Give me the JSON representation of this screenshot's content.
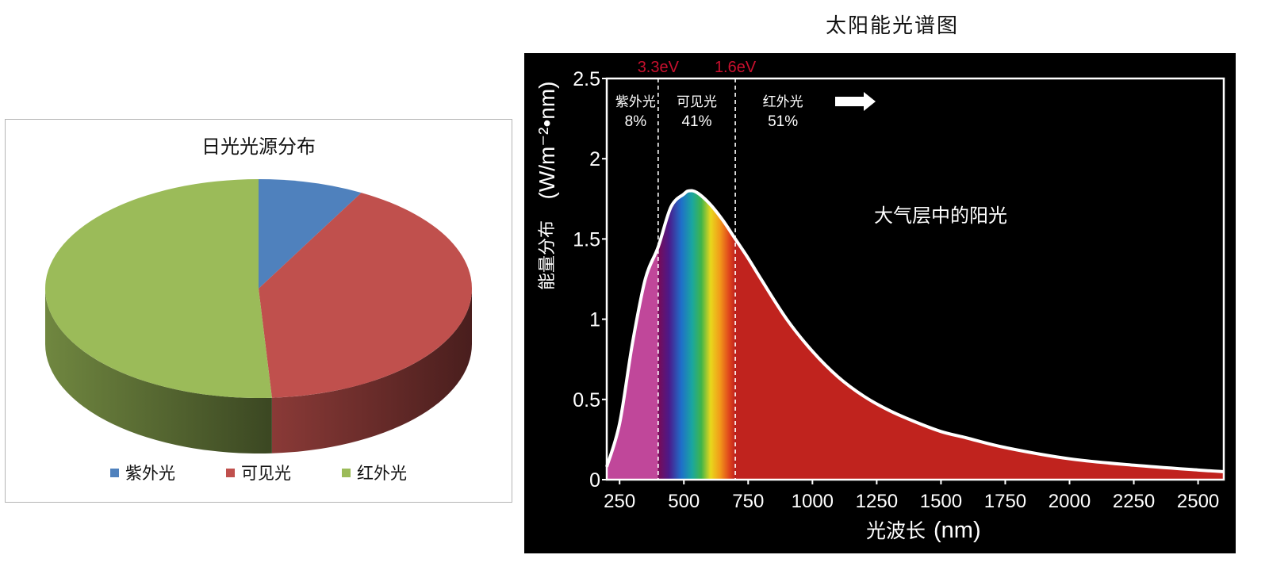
{
  "chart_data": [
    {
      "type": "pie",
      "title": "日光光源分布",
      "categories": [
        "紫外光",
        "可见光",
        "红外光"
      ],
      "values": [
        8,
        41,
        51
      ],
      "colors": [
        "#4f81bd",
        "#c0504d",
        "#9bbb59"
      ],
      "legend_position": "bottom"
    },
    {
      "type": "area",
      "title": "太阳能光谱图",
      "xlabel": "光波长",
      "xlabel_unit": "(nm)",
      "ylabel": "能量分布",
      "ylabel_unit": "(W/m⁻²•nm)",
      "xlim": [
        200,
        2600
      ],
      "ylim": [
        0,
        2.5
      ],
      "xticks": [
        250,
        500,
        750,
        1000,
        1250,
        1500,
        1750,
        2000,
        2250,
        2500
      ],
      "yticks": [
        0,
        0.5,
        1,
        1.5,
        2,
        2.5
      ],
      "ytick_labels": [
        "0",
        "0.5",
        "1",
        "1.5",
        "2",
        "2.5"
      ],
      "series": [
        {
          "x": [
            200,
            250,
            300,
            350,
            400,
            450,
            500,
            520,
            550,
            600,
            650,
            700,
            750,
            800,
            900,
            1000,
            1100,
            1200,
            1300,
            1400,
            1500,
            1600,
            1750,
            2000,
            2250,
            2500,
            2600
          ],
          "values": [
            0.08,
            0.35,
            0.85,
            1.25,
            1.45,
            1.7,
            1.78,
            1.8,
            1.79,
            1.72,
            1.62,
            1.5,
            1.38,
            1.25,
            1.0,
            0.8,
            0.64,
            0.52,
            0.43,
            0.36,
            0.3,
            0.26,
            0.2,
            0.13,
            0.09,
            0.06,
            0.05
          ]
        }
      ],
      "boundaries": [
        {
          "x": 400,
          "label": "3.3eV"
        },
        {
          "x": 700,
          "label": "1.6eV"
        }
      ],
      "regions": [
        {
          "name": "紫外光",
          "percent": "8%",
          "color": "#c0479a"
        },
        {
          "name": "可见光",
          "percent": "41%",
          "color": "spectrum"
        },
        {
          "name": "红外光",
          "percent": "51%",
          "color": "#c0231e"
        }
      ],
      "annotation": "大气层中的阳光",
      "colors": {
        "background": "#000000",
        "curve": "#ffffff",
        "boundary_label": "#c8102e"
      }
    }
  ]
}
